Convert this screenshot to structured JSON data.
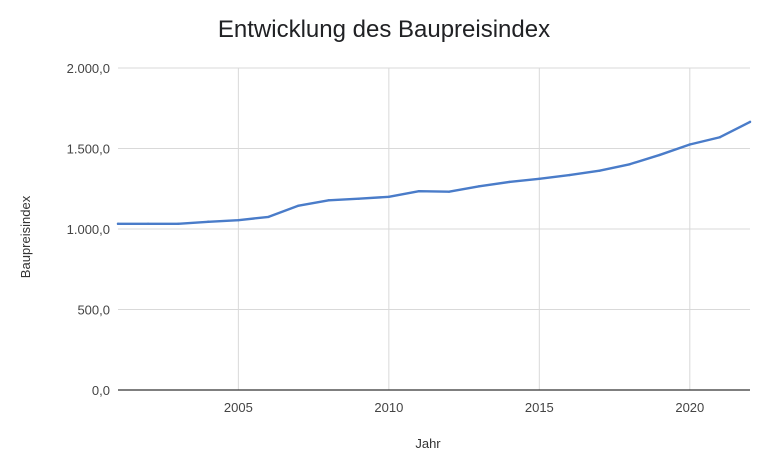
{
  "chart_data": {
    "type": "line",
    "title": "Entwicklung des Baupreisindex",
    "xlabel": "Jahr",
    "ylabel": "Baupreisindex",
    "xlim": [
      2001,
      2022
    ],
    "ylim": [
      0,
      2000
    ],
    "x_ticks": [
      2005,
      2010,
      2015,
      2020
    ],
    "x_tick_labels": [
      "2005",
      "2010",
      "2015",
      "2020"
    ],
    "y_ticks": [
      0,
      500,
      1000,
      1500,
      2000
    ],
    "y_tick_labels": [
      "0,0",
      "500,0",
      "1.000,0",
      "1.500,0",
      "2.000,0"
    ],
    "grid": true,
    "legend": "none",
    "series": [
      {
        "color": "#4a7cc9",
        "x": [
          2001,
          2002,
          2003,
          2004,
          2005,
          2006,
          2007,
          2008,
          2009,
          2010,
          2011,
          2012,
          2013,
          2014,
          2015,
          2016,
          2017,
          2018,
          2019,
          2020,
          2021,
          2022
        ],
        "values": [
          1032,
          1032,
          1032,
          1045,
          1055,
          1075,
          1145,
          1178,
          1188,
          1200,
          1235,
          1232,
          1265,
          1292,
          1312,
          1335,
          1362,
          1402,
          1460,
          1525,
          1570,
          1665
        ]
      }
    ]
  }
}
